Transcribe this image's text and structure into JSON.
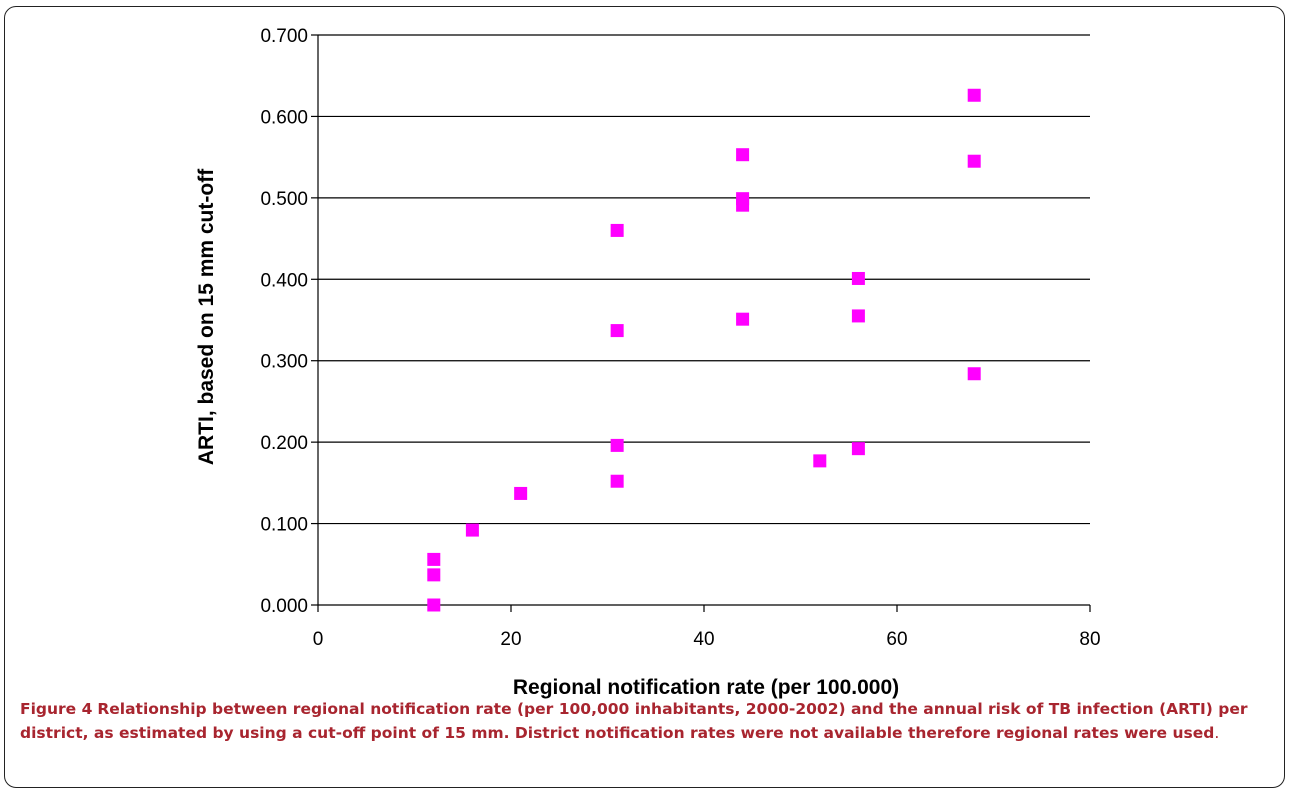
{
  "chart_data": {
    "type": "scatter",
    "xlabel": "Regional notification rate (per 100.000)",
    "ylabel": "ARTI, based on 15 mm cut-off",
    "xlim": [
      0,
      80
    ],
    "ylim": [
      0,
      0.7
    ],
    "xticks": [
      0,
      20,
      40,
      60,
      80
    ],
    "xtick_labels": [
      "0",
      "20",
      "40",
      "60",
      "80"
    ],
    "yticks": [
      0,
      0.1,
      0.2,
      0.3,
      0.4,
      0.5,
      0.6,
      0.7
    ],
    "ytick_labels": [
      "0.000",
      "0.100",
      "0.200",
      "0.300",
      "0.400",
      "0.500",
      "0.600",
      "0.700"
    ],
    "grid": "horizontal",
    "marker_color": "#ff00ff",
    "marker": "square",
    "points": [
      {
        "x": 12,
        "y": 0.056
      },
      {
        "x": 12,
        "y": 0.037
      },
      {
        "x": 12,
        "y": 0.0
      },
      {
        "x": 16,
        "y": 0.092
      },
      {
        "x": 21,
        "y": 0.137
      },
      {
        "x": 31,
        "y": 0.46
      },
      {
        "x": 31,
        "y": 0.337
      },
      {
        "x": 31,
        "y": 0.196
      },
      {
        "x": 31,
        "y": 0.152
      },
      {
        "x": 44,
        "y": 0.553
      },
      {
        "x": 44,
        "y": 0.499
      },
      {
        "x": 44,
        "y": 0.491
      },
      {
        "x": 44,
        "y": 0.351
      },
      {
        "x": 52,
        "y": 0.177
      },
      {
        "x": 56,
        "y": 0.401
      },
      {
        "x": 56,
        "y": 0.355
      },
      {
        "x": 56,
        "y": 0.192
      },
      {
        "x": 68,
        "y": 0.626
      },
      {
        "x": 68,
        "y": 0.545
      },
      {
        "x": 68,
        "y": 0.284
      }
    ]
  },
  "caption": {
    "label": "Figure 4",
    "text": "Relationship between regional notification rate (per 100,000 inhabitants, 2000-2002) and the annual risk of TB infection (ARTI) per district, as estimated by using a cut-off point of 15 mm. District notification rates were not available therefore regional rates were used",
    "end": "."
  }
}
